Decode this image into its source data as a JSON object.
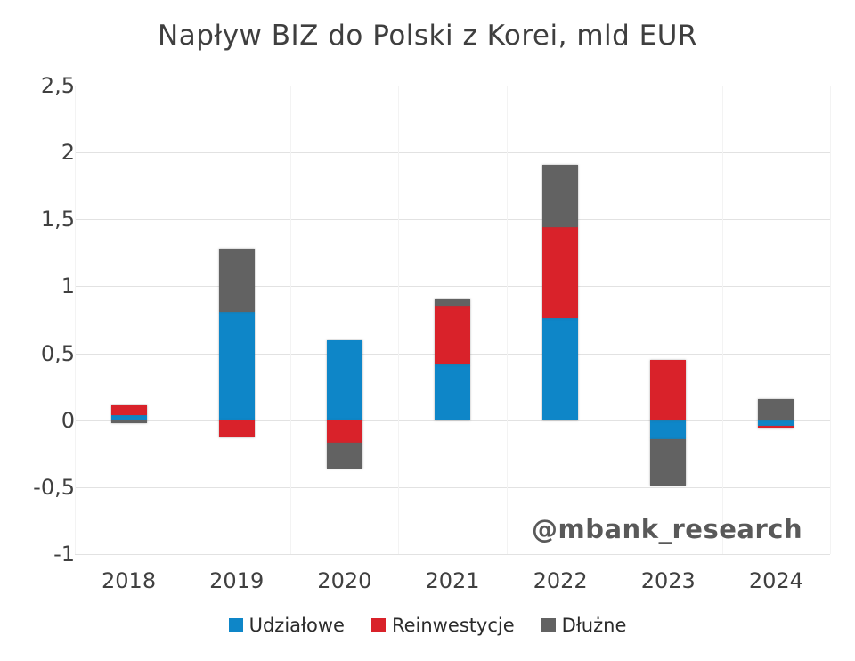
{
  "title": "Napływ BIZ do Polski z Korei, mld EUR",
  "watermark": "@mbank_research",
  "chart_data": {
    "type": "bar",
    "stacked": true,
    "title": "Napływ BIZ do Polski z Korei, mld EUR",
    "xlabel": "",
    "ylabel": "",
    "units": "mld EUR",
    "categories": [
      "2018",
      "2019",
      "2020",
      "2021",
      "2022",
      "2023",
      "2024"
    ],
    "series": [
      {
        "name": "Udziałowe",
        "color": "#0e86c8",
        "values": [
          0.04,
          0.81,
          0.6,
          0.42,
          0.76,
          -0.14,
          -0.04
        ]
      },
      {
        "name": "Reinwestycje",
        "color": "#d9222a",
        "values": [
          0.07,
          -0.13,
          -0.17,
          0.43,
          0.68,
          0.45,
          -0.02
        ]
      },
      {
        "name": "Dłużne",
        "color": "#626262",
        "values": [
          -0.02,
          0.47,
          -0.19,
          0.05,
          0.47,
          -0.35,
          0.16
        ]
      }
    ],
    "ylim": [
      -1,
      2.5
    ],
    "yticks": [
      {
        "value": -1,
        "label": "-1"
      },
      {
        "value": -0.5,
        "label": "-0,5"
      },
      {
        "value": 0,
        "label": "0"
      },
      {
        "value": 0.5,
        "label": "0,5"
      },
      {
        "value": 1,
        "label": "1"
      },
      {
        "value": 1.5,
        "label": "1,5"
      },
      {
        "value": 2,
        "label": "2"
      },
      {
        "value": 2.5,
        "label": "2,5"
      }
    ],
    "grid": true,
    "legend_position": "bottom"
  }
}
